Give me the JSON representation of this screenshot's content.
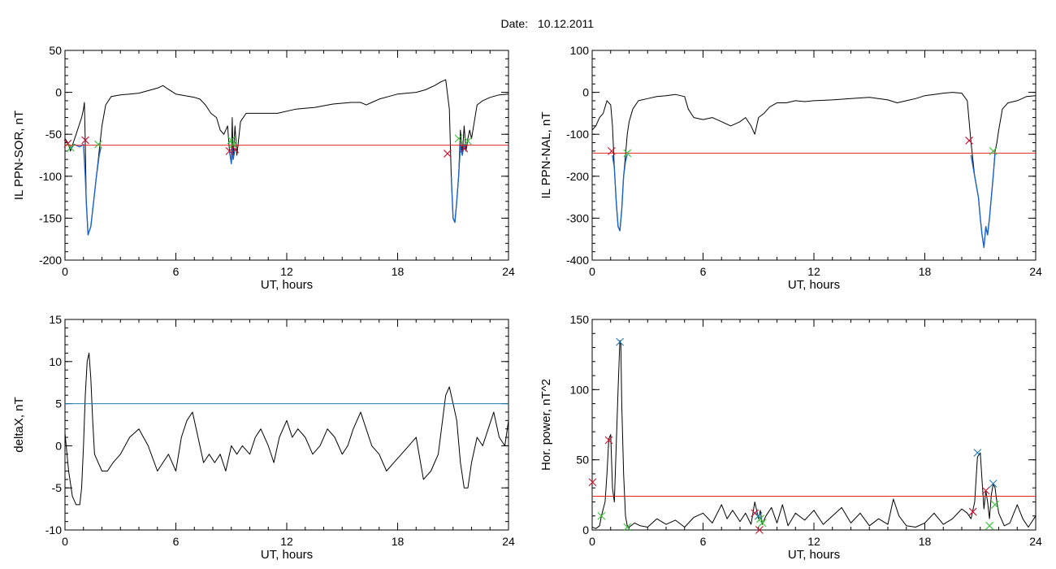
{
  "title_prefix": "Date:",
  "title_date": "10.12.2011",
  "colors": {
    "threshold_red": "#e3241b",
    "threshold_blue": "#1f7fb4",
    "interval_blue": "#1a63c9",
    "mark_red": "#c8102e",
    "mark_green": "#33c233",
    "mark_blue": "#1f77b4",
    "trace": "#000000"
  },
  "chart_data": [
    {
      "id": "sor",
      "type": "line",
      "xlabel": "UT, hours",
      "ylabel": "IL PPN-SOR, nT",
      "xlim": [
        0,
        24
      ],
      "ylim": [
        -200,
        50
      ],
      "xticks": [
        0,
        6,
        12,
        18,
        24
      ],
      "yticks": [
        50,
        0,
        -50,
        -100,
        -150,
        -200
      ],
      "xminor": 1,
      "yminor": 10,
      "threshold": {
        "value": -63,
        "color": "#e3241b"
      },
      "series": [
        {
          "x": [
            0,
            0.15,
            0.3,
            0.45,
            0.6,
            0.75,
            0.9,
            1.0,
            1.05,
            1.1,
            1.15,
            1.25,
            1.4,
            1.55,
            1.7,
            1.85,
            2.0,
            2.2,
            2.5,
            3.0,
            3.5,
            4.0,
            4.5,
            5.0,
            5.3,
            5.5,
            6.0,
            6.5,
            7.0,
            7.3,
            7.6,
            7.9,
            8.2,
            8.4,
            8.6,
            8.8,
            8.9,
            9.0,
            9.05,
            9.1,
            9.2,
            9.3,
            9.5,
            9.8,
            10.5,
            11.5,
            12.5,
            13.5,
            14.5,
            15.5,
            16.0,
            16.3,
            16.6,
            17.0,
            17.5,
            18.0,
            18.5,
            19.0,
            19.5,
            20.0,
            20.3,
            20.6,
            20.8,
            20.9,
            21.0,
            21.1,
            21.2,
            21.3,
            21.4,
            21.5,
            21.6,
            21.7,
            21.8,
            21.9,
            22.0,
            22.3,
            22.6,
            23.0,
            23.5,
            24.0
          ],
          "y": [
            -55,
            -60,
            -70,
            -60,
            -50,
            -40,
            -30,
            -20,
            -12,
            -60,
            -130,
            -170,
            -160,
            -130,
            -100,
            -70,
            -40,
            -15,
            -5,
            -3,
            -2,
            -1,
            2,
            5,
            8,
            5,
            -2,
            -4,
            -6,
            -8,
            -15,
            -25,
            -30,
            -45,
            -50,
            -40,
            -70,
            -85,
            -30,
            -80,
            -40,
            -75,
            -35,
            -25,
            -25,
            -25,
            -20,
            -18,
            -14,
            -12,
            -12,
            -15,
            -12,
            -8,
            -5,
            -2,
            -1,
            0,
            3,
            8,
            12,
            15,
            -20,
            -100,
            -150,
            -155,
            -130,
            -100,
            -45,
            -75,
            -40,
            -70,
            -55,
            -45,
            -55,
            -15,
            -10,
            -6,
            -3,
            -2
          ]
        },
        {
          "color": "#1a63c9",
          "x": [
            0.3,
            0.5,
            0.8,
            1.0,
            1.1,
            1.15,
            1.25,
            1.4,
            1.55,
            1.7,
            1.85,
            1.95
          ],
          "y": [
            -68,
            -62,
            -65,
            -62,
            -100,
            -130,
            -170,
            -160,
            -130,
            -100,
            -75,
            -65
          ]
        },
        {
          "color": "#1a63c9",
          "x": [
            8.9,
            9.0,
            9.05,
            9.1,
            9.2
          ],
          "y": [
            -70,
            -85,
            -65,
            -80,
            -68
          ]
        },
        {
          "color": "#1a63c9",
          "x": [
            20.9,
            21.0,
            21.1,
            21.2,
            21.3,
            21.4,
            21.5,
            21.6,
            21.7
          ],
          "y": [
            -100,
            -150,
            -155,
            -130,
            -100,
            -63,
            -75,
            -62,
            -70
          ]
        }
      ],
      "markers": [
        {
          "x": 0.15,
          "y": -61,
          "color": "#c8102e"
        },
        {
          "x": 1.1,
          "y": -57,
          "color": "#c8102e"
        },
        {
          "x": 8.9,
          "y": -70,
          "color": "#c8102e"
        },
        {
          "x": 9.2,
          "y": -68,
          "color": "#c8102e"
        },
        {
          "x": 20.7,
          "y": -73,
          "color": "#c8102e"
        },
        {
          "x": 21.6,
          "y": -67,
          "color": "#c8102e"
        },
        {
          "x": 0.3,
          "y": -66,
          "color": "#33c233"
        },
        {
          "x": 1.8,
          "y": -62,
          "color": "#33c233"
        },
        {
          "x": 9.0,
          "y": -57,
          "color": "#33c233"
        },
        {
          "x": 9.1,
          "y": -62,
          "color": "#33c233"
        },
        {
          "x": 21.3,
          "y": -55,
          "color": "#33c233"
        },
        {
          "x": 21.8,
          "y": -58,
          "color": "#33c233"
        }
      ]
    },
    {
      "id": "nal",
      "type": "line",
      "xlabel": "UT, hours",
      "ylabel": "IL PPN-NAL, nT",
      "xlim": [
        0,
        24
      ],
      "ylim": [
        -400,
        100
      ],
      "xticks": [
        0,
        6,
        12,
        18,
        24
      ],
      "yticks": [
        100,
        0,
        -100,
        -200,
        -300,
        -400
      ],
      "xminor": 1,
      "yminor": 20,
      "threshold": {
        "value": -145,
        "color": "#e3241b"
      },
      "series": [
        {
          "x": [
            0,
            0.2,
            0.4,
            0.6,
            0.8,
            1.0,
            1.1,
            1.2,
            1.3,
            1.4,
            1.5,
            1.6,
            1.7,
            1.8,
            1.9,
            2.0,
            2.2,
            2.5,
            3.0,
            3.5,
            4.0,
            4.5,
            5.0,
            5.2,
            5.5,
            6.0,
            6.5,
            7.0,
            7.5,
            8.0,
            8.3,
            8.6,
            8.8,
            9.0,
            9.3,
            9.6,
            10.0,
            10.5,
            11.0,
            11.5,
            12.0,
            13.0,
            14.0,
            15.0,
            16.0,
            16.5,
            17.0,
            17.5,
            18.0,
            18.5,
            19.0,
            19.5,
            20.0,
            20.3,
            20.5,
            20.7,
            20.9,
            21.0,
            21.1,
            21.2,
            21.3,
            21.4,
            21.5,
            21.6,
            21.7,
            21.8,
            21.9,
            22.0,
            22.2,
            22.5,
            23.0,
            23.5,
            24.0
          ],
          "y": [
            -90,
            -80,
            -60,
            -50,
            -20,
            -30,
            -80,
            -180,
            -260,
            -320,
            -330,
            -280,
            -200,
            -150,
            -100,
            -70,
            -40,
            -20,
            -15,
            -10,
            -8,
            -5,
            -10,
            -40,
            -60,
            -65,
            -60,
            -70,
            -80,
            -70,
            -60,
            -80,
            -100,
            -60,
            -50,
            -35,
            -25,
            -25,
            -20,
            -22,
            -20,
            -18,
            -15,
            -12,
            -18,
            -25,
            -20,
            -15,
            -8,
            -5,
            -2,
            0,
            -2,
            -20,
            -120,
            -200,
            -250,
            -300,
            -340,
            -370,
            -320,
            -340,
            -300,
            -250,
            -200,
            -140,
            -120,
            -90,
            -40,
            -25,
            -20,
            -10,
            -8
          ]
        },
        {
          "color": "#1a63c9",
          "x": [
            1.1,
            1.2,
            1.3,
            1.4,
            1.5,
            1.6,
            1.7,
            1.8,
            1.9
          ],
          "y": [
            -150,
            -180,
            -260,
            -320,
            -330,
            -280,
            -200,
            -165,
            -148
          ]
        },
        {
          "color": "#1a63c9",
          "x": [
            20.5,
            20.7,
            20.9,
            21.0,
            21.1,
            21.2,
            21.3,
            21.4,
            21.5,
            21.6,
            21.7,
            21.8
          ],
          "y": [
            -150,
            -200,
            -250,
            -300,
            -340,
            -370,
            -320,
            -340,
            -300,
            -250,
            -200,
            -145
          ]
        }
      ],
      "markers": [
        {
          "x": 1.05,
          "y": -140,
          "color": "#c8102e"
        },
        {
          "x": 20.4,
          "y": -115,
          "color": "#c8102e"
        },
        {
          "x": 1.9,
          "y": -145,
          "color": "#33c233"
        },
        {
          "x": 21.7,
          "y": -140,
          "color": "#33c233"
        }
      ]
    },
    {
      "id": "deltax",
      "type": "line",
      "xlabel": "UT, hours",
      "ylabel": "deltaX, nT",
      "xlim": [
        0,
        24
      ],
      "ylim": [
        -10,
        15
      ],
      "xticks": [
        0,
        6,
        12,
        18,
        24
      ],
      "yticks": [
        15,
        10,
        5,
        0,
        -5,
        -10
      ],
      "xminor": 1,
      "yminor": 1,
      "threshold": {
        "value": 5,
        "color": "#1f7fb4"
      },
      "series": [
        {
          "x": [
            0,
            0.2,
            0.4,
            0.6,
            0.8,
            0.9,
            1.0,
            1.1,
            1.2,
            1.3,
            1.4,
            1.5,
            1.6,
            1.8,
            2.0,
            2.3,
            2.6,
            3.0,
            3.5,
            4.0,
            4.5,
            5.0,
            5.3,
            5.6,
            6.0,
            6.3,
            6.6,
            6.9,
            7.2,
            7.5,
            7.8,
            8.1,
            8.4,
            8.7,
            9.0,
            9.3,
            9.6,
            10.0,
            10.3,
            10.6,
            11.0,
            11.3,
            11.6,
            12.0,
            12.3,
            12.6,
            13.0,
            13.4,
            13.8,
            14.2,
            14.6,
            15.0,
            15.3,
            15.6,
            16.0,
            16.3,
            16.6,
            17.0,
            17.4,
            17.8,
            18.2,
            18.6,
            19.0,
            19.4,
            19.8,
            20.2,
            20.6,
            20.8,
            21.0,
            21.2,
            21.4,
            21.6,
            21.8,
            22.0,
            22.3,
            22.6,
            22.9,
            23.2,
            23.5,
            23.8,
            24.0
          ],
          "y": [
            1.5,
            -3,
            -6,
            -7,
            -7,
            -5,
            0,
            6,
            10,
            11,
            8,
            3,
            -1,
            -2,
            -3,
            -3,
            -2,
            -1,
            1,
            2,
            0,
            -3,
            -2,
            -1,
            -3,
            1,
            3,
            4,
            1,
            -2,
            -1,
            -2,
            -1,
            -3,
            0,
            -1,
            0,
            -1,
            1,
            2,
            0,
            -2,
            1,
            3,
            1,
            2,
            1,
            -1,
            0,
            2,
            1,
            -1,
            0,
            2,
            4,
            2,
            0,
            -1,
            -3,
            -2,
            -1,
            0,
            1,
            -4,
            -3,
            -1,
            6,
            7,
            5,
            3,
            -2,
            -5,
            -5,
            -2,
            1,
            0,
            2,
            4,
            1,
            0,
            3
          ]
        }
      ],
      "markers": []
    },
    {
      "id": "power",
      "type": "line",
      "xlabel": "UT, hours",
      "ylabel": "Hor. power, nT^2",
      "xlim": [
        0,
        24
      ],
      "ylim": [
        0,
        150
      ],
      "xticks": [
        0,
        6,
        12,
        18,
        24
      ],
      "yticks": [
        150,
        100,
        50,
        0
      ],
      "xminor": 1,
      "yminor": 10,
      "threshold": {
        "value": 24,
        "color": "#e3241b"
      },
      "series": [
        {
          "x": [
            0,
            0.2,
            0.4,
            0.5,
            0.6,
            0.7,
            0.8,
            0.9,
            1.0,
            1.1,
            1.2,
            1.3,
            1.4,
            1.5,
            1.55,
            1.6,
            1.7,
            1.8,
            1.9,
            2.0,
            2.3,
            2.6,
            3.0,
            3.5,
            4.0,
            4.5,
            5.0,
            5.5,
            6.0,
            6.5,
            7.0,
            7.3,
            7.6,
            8.0,
            8.3,
            8.6,
            8.8,
            9.0,
            9.1,
            9.2,
            9.4,
            9.7,
            10.0,
            10.3,
            10.6,
            11.0,
            11.5,
            12.0,
            12.5,
            13.0,
            13.5,
            14.0,
            14.5,
            15.0,
            15.5,
            16.0,
            16.3,
            16.6,
            17.0,
            17.5,
            18.0,
            18.5,
            19.0,
            19.5,
            20.0,
            20.3,
            20.5,
            20.7,
            20.85,
            21.0,
            21.1,
            21.2,
            21.3,
            21.4,
            21.5,
            21.6,
            21.7,
            21.8,
            21.9,
            22.0,
            22.3,
            22.6,
            23.0,
            23.3,
            23.6,
            24.0
          ],
          "y": [
            2,
            1,
            3,
            10,
            15,
            20,
            40,
            65,
            68,
            30,
            20,
            60,
            100,
            135,
            132,
            90,
            40,
            10,
            3,
            2,
            5,
            3,
            2,
            8,
            4,
            7,
            2,
            9,
            12,
            5,
            18,
            8,
            14,
            6,
            12,
            4,
            20,
            8,
            14,
            4,
            10,
            16,
            5,
            18,
            3,
            12,
            7,
            14,
            4,
            10,
            16,
            5,
            12,
            3,
            8,
            4,
            22,
            10,
            3,
            2,
            5,
            12,
            4,
            8,
            15,
            12,
            8,
            20,
            52,
            55,
            35,
            15,
            28,
            20,
            8,
            25,
            33,
            30,
            20,
            12,
            3,
            5,
            18,
            8,
            2,
            10
          ]
        }
      ],
      "markers": [
        {
          "x": 0.02,
          "y": 34,
          "color": "#c8102e"
        },
        {
          "x": 0.9,
          "y": 64,
          "color": "#c8102e"
        },
        {
          "x": 8.8,
          "y": 12,
          "color": "#c8102e"
        },
        {
          "x": 9.05,
          "y": 0,
          "color": "#c8102e"
        },
        {
          "x": 20.6,
          "y": 13,
          "color": "#c8102e"
        },
        {
          "x": 21.3,
          "y": 28,
          "color": "#c8102e"
        },
        {
          "x": 0.5,
          "y": 10,
          "color": "#33c233"
        },
        {
          "x": 1.9,
          "y": 2,
          "color": "#33c233"
        },
        {
          "x": 9.1,
          "y": 8,
          "color": "#33c233"
        },
        {
          "x": 9.2,
          "y": 5,
          "color": "#33c233"
        },
        {
          "x": 21.5,
          "y": 3,
          "color": "#33c233"
        },
        {
          "x": 21.8,
          "y": 18,
          "color": "#33c233"
        },
        {
          "x": 1.5,
          "y": 134,
          "color": "#1f77b4"
        },
        {
          "x": 9.0,
          "y": 10,
          "color": "#1f77b4"
        },
        {
          "x": 20.85,
          "y": 55,
          "color": "#1f77b4"
        },
        {
          "x": 21.7,
          "y": 33,
          "color": "#1f77b4"
        }
      ]
    }
  ]
}
